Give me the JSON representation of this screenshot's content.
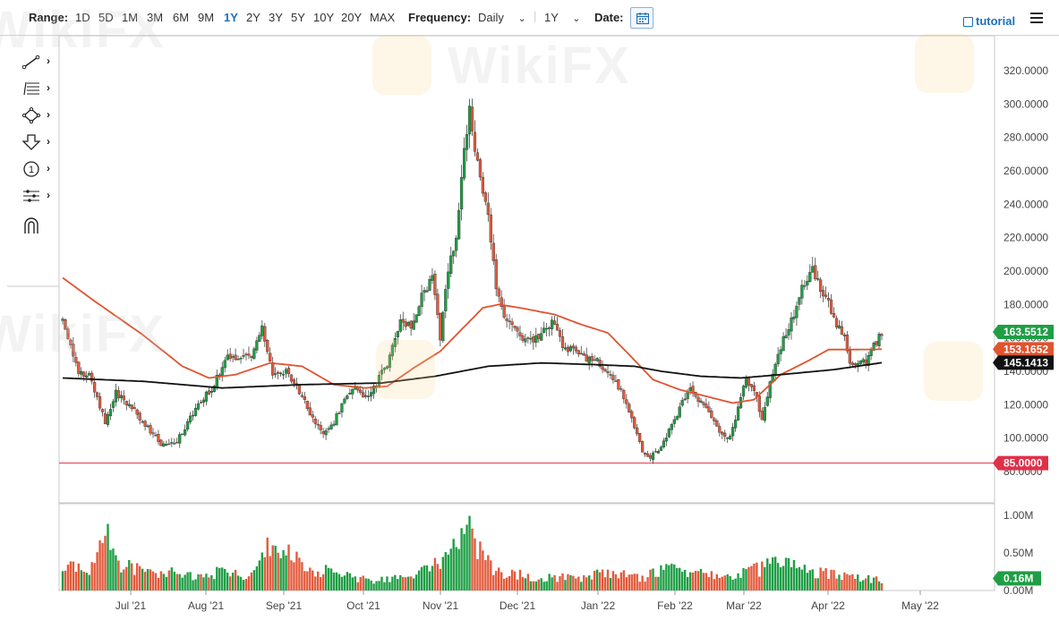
{
  "toolbar": {
    "range_label": "Range:",
    "ranges": [
      "1D",
      "5D",
      "1M",
      "3M",
      "6M",
      "9M",
      "1Y",
      "2Y",
      "3Y",
      "5Y",
      "10Y",
      "20Y",
      "MAX"
    ],
    "active_range": "1Y",
    "frequency_label": "Frequency:",
    "frequency_value": "Daily",
    "period_value": "1Y",
    "date_label": "Date:",
    "tutorial_label": "tutorial"
  },
  "drawing_tools": [
    "line-tool-icon",
    "fib-tool-icon",
    "shape-tool-icon",
    "arrow-tool-icon",
    "annotation-tool-icon",
    "measure-tool-icon",
    "magnet-icon"
  ],
  "drawing_tool_glyphs": {
    "annotation": "1"
  },
  "watermark": "WikiFX",
  "colors": {
    "up": "#1f9e45",
    "down": "#e35a3c",
    "ma_short": "#e0532f",
    "ma_long": "#111111",
    "support_line": "#e0304a",
    "accent": "#1e6fbd"
  },
  "chart_data": {
    "type": "candlestick",
    "y_ticks": [
      "320.0000",
      "300.0000",
      "280.0000",
      "260.0000",
      "240.0000",
      "220.0000",
      "200.0000",
      "180.0000",
      "160.0000",
      "140.0000",
      "120.0000",
      "100.0000",
      "80.0000"
    ],
    "ylim": [
      80,
      320
    ],
    "x_ticks": [
      "Jul '21",
      "Aug '21",
      "Sep '21",
      "Oct '21",
      "Nov '21",
      "Dec '21",
      "Jan '22",
      "Feb '22",
      "Mar '22",
      "Apr '22",
      "May '22"
    ],
    "price_tags": [
      {
        "label": "163.5512",
        "value": 163.55,
        "color": "#1f9e45"
      },
      {
        "label": "153.1652",
        "value": 153.17,
        "color": "#e0532f"
      },
      {
        "label": "145.1413",
        "value": 145.14,
        "color": "#111111"
      }
    ],
    "horizontal_line": {
      "label": "85.0000",
      "value": 85
    },
    "price_anchors": [
      [
        0,
        170
      ],
      [
        6,
        140
      ],
      [
        10,
        138
      ],
      [
        16,
        110
      ],
      [
        20,
        127
      ],
      [
        26,
        118
      ],
      [
        31,
        108
      ],
      [
        37,
        96
      ],
      [
        43,
        98
      ],
      [
        50,
        118
      ],
      [
        56,
        130
      ],
      [
        62,
        148
      ],
      [
        68,
        150
      ],
      [
        71,
        148
      ],
      [
        75,
        165
      ],
      [
        79,
        137
      ],
      [
        84,
        140
      ],
      [
        89,
        128
      ],
      [
        94,
        112
      ],
      [
        98,
        104
      ],
      [
        102,
        110
      ],
      [
        106,
        123
      ],
      [
        110,
        132
      ],
      [
        113,
        124
      ],
      [
        117,
        130
      ],
      [
        123,
        148
      ],
      [
        127,
        170
      ],
      [
        131,
        168
      ],
      [
        135,
        185
      ],
      [
        139,
        195
      ],
      [
        142,
        160
      ],
      [
        145,
        200
      ],
      [
        148,
        220
      ],
      [
        150,
        260
      ],
      [
        153,
        295
      ],
      [
        156,
        265
      ],
      [
        160,
        235
      ],
      [
        163,
        190
      ],
      [
        166,
        172
      ],
      [
        169,
        168
      ],
      [
        173,
        160
      ],
      [
        177,
        158
      ],
      [
        181,
        165
      ],
      [
        185,
        170
      ],
      [
        188,
        155
      ],
      [
        192,
        152
      ],
      [
        196,
        148
      ],
      [
        200,
        148
      ],
      [
        204,
        140
      ],
      [
        208,
        133
      ],
      [
        212,
        122
      ],
      [
        215,
        107
      ],
      [
        218,
        92
      ],
      [
        221,
        88
      ],
      [
        225,
        95
      ],
      [
        229,
        108
      ],
      [
        232,
        118
      ],
      [
        236,
        132
      ],
      [
        239,
        123
      ],
      [
        242,
        120
      ],
      [
        245,
        110
      ],
      [
        248,
        102
      ],
      [
        251,
        100
      ],
      [
        254,
        118
      ],
      [
        257,
        135
      ],
      [
        260,
        130
      ],
      [
        263,
        110
      ],
      [
        266,
        132
      ],
      [
        270,
        155
      ],
      [
        274,
        170
      ],
      [
        278,
        190
      ],
      [
        282,
        200
      ],
      [
        285,
        190
      ],
      [
        288,
        180
      ],
      [
        291,
        168
      ],
      [
        294,
        160
      ],
      [
        296,
        145
      ],
      [
        299,
        145
      ],
      [
        302,
        145
      ],
      [
        305,
        155
      ],
      [
        308,
        163.55
      ]
    ],
    "ma_short_anchors": [
      [
        0,
        196
      ],
      [
        12,
        182
      ],
      [
        30,
        162
      ],
      [
        45,
        143
      ],
      [
        55,
        136
      ],
      [
        65,
        138
      ],
      [
        78,
        145
      ],
      [
        90,
        143
      ],
      [
        102,
        132
      ],
      [
        114,
        130
      ],
      [
        122,
        131
      ],
      [
        132,
        142
      ],
      [
        142,
        152
      ],
      [
        150,
        165
      ],
      [
        158,
        178
      ],
      [
        164,
        180
      ],
      [
        172,
        178
      ],
      [
        185,
        174
      ],
      [
        195,
        168
      ],
      [
        205,
        163
      ],
      [
        213,
        150
      ],
      [
        222,
        135
      ],
      [
        232,
        129
      ],
      [
        242,
        125
      ],
      [
        252,
        121
      ],
      [
        260,
        123
      ],
      [
        270,
        138
      ],
      [
        280,
        146
      ],
      [
        288,
        153
      ],
      [
        297,
        153
      ],
      [
        308,
        153.17
      ]
    ],
    "ma_long_anchors": [
      [
        0,
        136
      ],
      [
        30,
        134
      ],
      [
        60,
        130
      ],
      [
        90,
        132
      ],
      [
        120,
        133
      ],
      [
        140,
        137
      ],
      [
        160,
        143
      ],
      [
        180,
        145
      ],
      [
        200,
        144
      ],
      [
        215,
        143
      ],
      [
        225,
        140
      ],
      [
        240,
        137
      ],
      [
        255,
        136
      ],
      [
        270,
        138
      ],
      [
        290,
        141
      ],
      [
        308,
        145.14
      ]
    ],
    "volume_ticks": [
      "1.00M",
      "0.50M",
      "0.00M"
    ],
    "volume_tag": "0.16M",
    "volume_ylim": [
      0,
      1.0
    ],
    "volume_anchors": [
      [
        0,
        0.4
      ],
      [
        10,
        0.3
      ],
      [
        16,
        0.94
      ],
      [
        22,
        0.4
      ],
      [
        30,
        0.3
      ],
      [
        40,
        0.3
      ],
      [
        50,
        0.2
      ],
      [
        60,
        0.3
      ],
      [
        70,
        0.2
      ],
      [
        80,
        0.8
      ],
      [
        86,
        0.6
      ],
      [
        92,
        0.3
      ],
      [
        102,
        0.3
      ],
      [
        110,
        0.2
      ],
      [
        118,
        0.15
      ],
      [
        128,
        0.2
      ],
      [
        136,
        0.3
      ],
      [
        142,
        0.5
      ],
      [
        146,
        0.6
      ],
      [
        150,
        0.8
      ],
      [
        154,
        0.9
      ],
      [
        158,
        0.6
      ],
      [
        162,
        0.3
      ],
      [
        170,
        0.25
      ],
      [
        180,
        0.2
      ],
      [
        195,
        0.2
      ],
      [
        205,
        0.3
      ],
      [
        212,
        0.25
      ],
      [
        218,
        0.2
      ],
      [
        225,
        0.3
      ],
      [
        232,
        0.35
      ],
      [
        240,
        0.25
      ],
      [
        250,
        0.2
      ],
      [
        258,
        0.3
      ],
      [
        264,
        0.35
      ],
      [
        270,
        0.5
      ],
      [
        276,
        0.4
      ],
      [
        282,
        0.3
      ],
      [
        290,
        0.25
      ],
      [
        300,
        0.2
      ],
      [
        308,
        0.16
      ]
    ]
  }
}
